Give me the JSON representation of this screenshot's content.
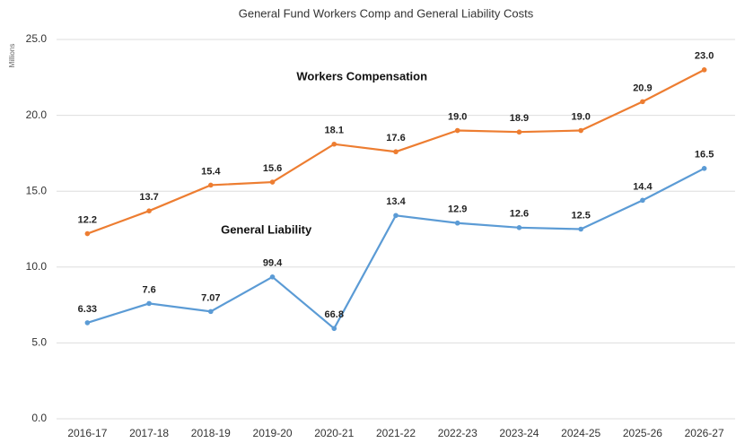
{
  "chart_data": {
    "type": "line",
    "title": "General Fund Workers Comp and General Liability Costs",
    "y_label": "Millions",
    "categories": [
      "2016-17",
      "2017-18",
      "2018-19",
      "2019-20",
      "2020-21",
      "2021-22",
      "2022-23",
      "2023-24",
      "2024-25",
      "2025-26",
      "2026-27"
    ],
    "series": [
      {
        "name": "Workers Compensation",
        "color": "#ed7d31",
        "values": [
          12.2,
          13.7,
          15.4,
          15.6,
          18.1,
          17.6,
          19.0,
          18.9,
          19.0,
          20.9,
          23.0
        ],
        "value_labels": [
          "12.2",
          "13.7",
          "15.4",
          "15.6",
          "18.1",
          "17.6",
          "19.0",
          "18.9",
          "19.0",
          "20.9",
          "23.0"
        ]
      },
      {
        "name": "General Liability",
        "color": "#5b9bd5",
        "values": [
          6.33,
          7.6,
          7.07,
          9.35,
          5.95,
          13.4,
          12.9,
          12.6,
          12.5,
          14.4,
          16.5
        ],
        "value_labels": [
          "6.33",
          "7.6",
          "7.07",
          null,
          null,
          "13.4",
          "12.9",
          "12.6",
          "12.5",
          "14.4",
          "16.5"
        ]
      }
    ],
    "annotations": [
      "99.4",
      "66.8"
    ],
    "ylim": [
      0,
      25
    ],
    "yticks": [
      {
        "value": 0,
        "label": "0.0"
      },
      {
        "value": 5,
        "label": "5.0"
      },
      {
        "value": 10,
        "label": "10.0"
      },
      {
        "value": 15,
        "label": "15.0"
      },
      {
        "value": 20,
        "label": "20.0"
      },
      {
        "value": 25,
        "label": "25.0"
      }
    ],
    "grid": true
  }
}
